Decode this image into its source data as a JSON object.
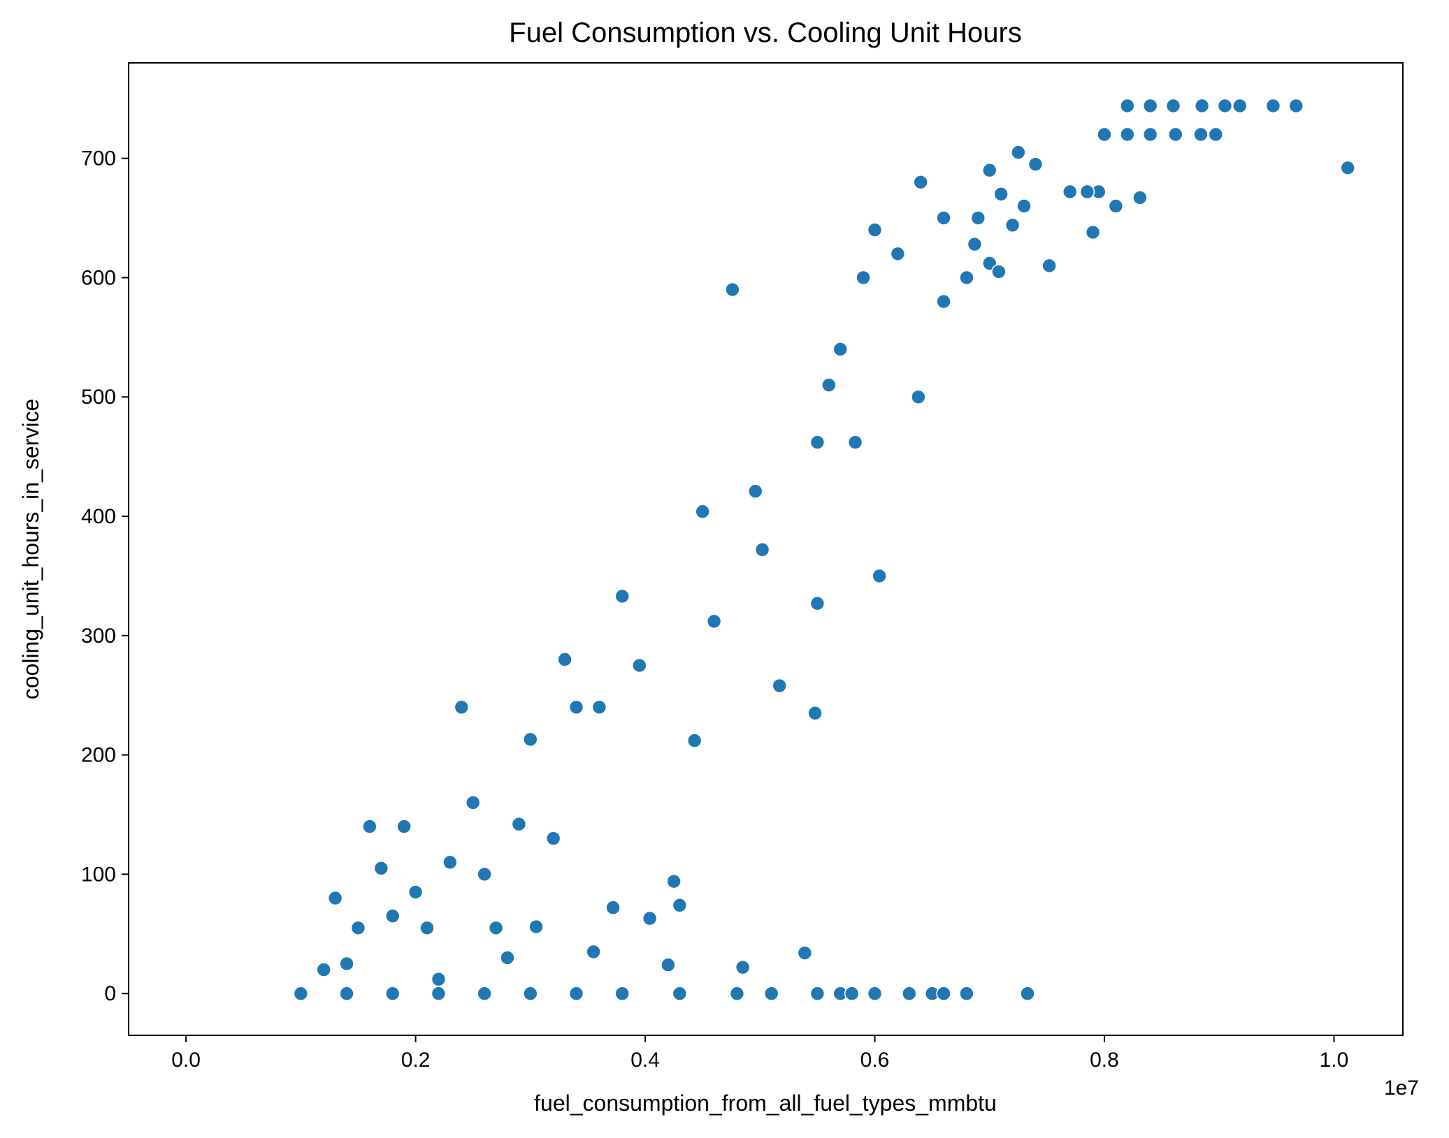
{
  "chart_data": {
    "type": "scatter",
    "title": "Fuel Consumption vs. Cooling Unit Hours",
    "xlabel": "fuel_consumption_from_all_fuel_types_mmbtu",
    "ylabel": "cooling_unit_hours_in_service",
    "x_offset_label": "1e7",
    "xlim": [
      -0.05,
      1.06
    ],
    "ylim": [
      -35,
      780
    ],
    "xticks": [
      0.0,
      0.2,
      0.4,
      0.6,
      0.8,
      1.0
    ],
    "xtick_labels": [
      "0.0",
      "0.2",
      "0.4",
      "0.6",
      "0.8",
      "1.0"
    ],
    "yticks": [
      0,
      100,
      200,
      300,
      400,
      500,
      600,
      700
    ],
    "ytick_labels": [
      "0",
      "100",
      "200",
      "300",
      "400",
      "500",
      "600",
      "700"
    ],
    "grid": false,
    "legend": "none",
    "marker_color": "#1f77b4",
    "marker_edge_color": "#ffffff",
    "series": [
      {
        "values": [
          [
            0.967,
            744
          ],
          [
            0.947,
            744
          ],
          [
            0.918,
            744
          ],
          [
            0.905,
            744
          ],
          [
            0.885,
            744
          ],
          [
            0.86,
            744
          ],
          [
            0.84,
            744
          ],
          [
            0.82,
            744
          ],
          [
            0.897,
            720
          ],
          [
            0.884,
            720
          ],
          [
            0.862,
            720
          ],
          [
            0.84,
            720
          ],
          [
            0.82,
            720
          ],
          [
            0.8,
            720
          ],
          [
            1.012,
            692
          ],
          [
            0.831,
            667
          ],
          [
            0.81,
            660
          ],
          [
            0.795,
            672
          ],
          [
            0.785,
            672
          ],
          [
            0.77,
            672
          ],
          [
            0.79,
            638
          ],
          [
            0.752,
            610
          ],
          [
            0.74,
            695
          ],
          [
            0.725,
            705
          ],
          [
            0.7,
            690
          ],
          [
            0.73,
            660
          ],
          [
            0.71,
            670
          ],
          [
            0.72,
            644
          ],
          [
            0.69,
            650
          ],
          [
            0.7,
            612
          ],
          [
            0.708,
            605
          ],
          [
            0.687,
            628
          ],
          [
            0.68,
            600
          ],
          [
            0.66,
            580
          ],
          [
            0.66,
            650
          ],
          [
            0.64,
            680
          ],
          [
            0.638,
            500
          ],
          [
            0.604,
            350
          ],
          [
            0.62,
            620
          ],
          [
            0.6,
            640
          ],
          [
            0.59,
            600
          ],
          [
            0.583,
            462
          ],
          [
            0.57,
            540
          ],
          [
            0.56,
            510
          ],
          [
            0.55,
            327
          ],
          [
            0.55,
            462
          ],
          [
            0.548,
            235
          ],
          [
            0.539,
            34
          ],
          [
            0.517,
            258
          ],
          [
            0.502,
            372
          ],
          [
            0.496,
            421
          ],
          [
            0.485,
            22
          ],
          [
            0.476,
            590
          ],
          [
            0.46,
            312
          ],
          [
            0.45,
            404
          ],
          [
            0.443,
            212
          ],
          [
            0.43,
            74
          ],
          [
            0.42,
            24
          ],
          [
            0.425,
            94
          ],
          [
            0.404,
            63
          ],
          [
            0.395,
            275
          ],
          [
            0.38,
            333
          ],
          [
            0.372,
            72
          ],
          [
            0.355,
            35
          ],
          [
            0.36,
            240
          ],
          [
            0.34,
            240
          ],
          [
            0.33,
            280
          ],
          [
            0.32,
            130
          ],
          [
            0.305,
            56
          ],
          [
            0.3,
            213
          ],
          [
            0.29,
            142
          ],
          [
            0.28,
            30
          ],
          [
            0.27,
            55
          ],
          [
            0.26,
            100
          ],
          [
            0.25,
            160
          ],
          [
            0.24,
            240
          ],
          [
            0.23,
            110
          ],
          [
            0.22,
            12
          ],
          [
            0.21,
            55
          ],
          [
            0.2,
            85
          ],
          [
            0.19,
            140
          ],
          [
            0.18,
            65
          ],
          [
            0.17,
            105
          ],
          [
            0.16,
            140
          ],
          [
            0.15,
            55
          ],
          [
            0.14,
            25
          ],
          [
            0.13,
            80
          ],
          [
            0.12,
            20
          ],
          [
            0.34,
            0
          ],
          [
            0.38,
            0
          ],
          [
            0.43,
            0
          ],
          [
            0.48,
            0
          ],
          [
            0.51,
            0
          ],
          [
            0.55,
            0
          ],
          [
            0.57,
            0
          ],
          [
            0.58,
            0
          ],
          [
            0.6,
            0
          ],
          [
            0.63,
            0
          ],
          [
            0.65,
            0
          ],
          [
            0.66,
            0
          ],
          [
            0.68,
            0
          ],
          [
            0.733,
            0
          ],
          [
            0.3,
            0
          ],
          [
            0.26,
            0
          ],
          [
            0.22,
            0
          ],
          [
            0.18,
            0
          ],
          [
            0.14,
            0
          ],
          [
            0.1,
            0
          ]
        ]
      }
    ]
  }
}
